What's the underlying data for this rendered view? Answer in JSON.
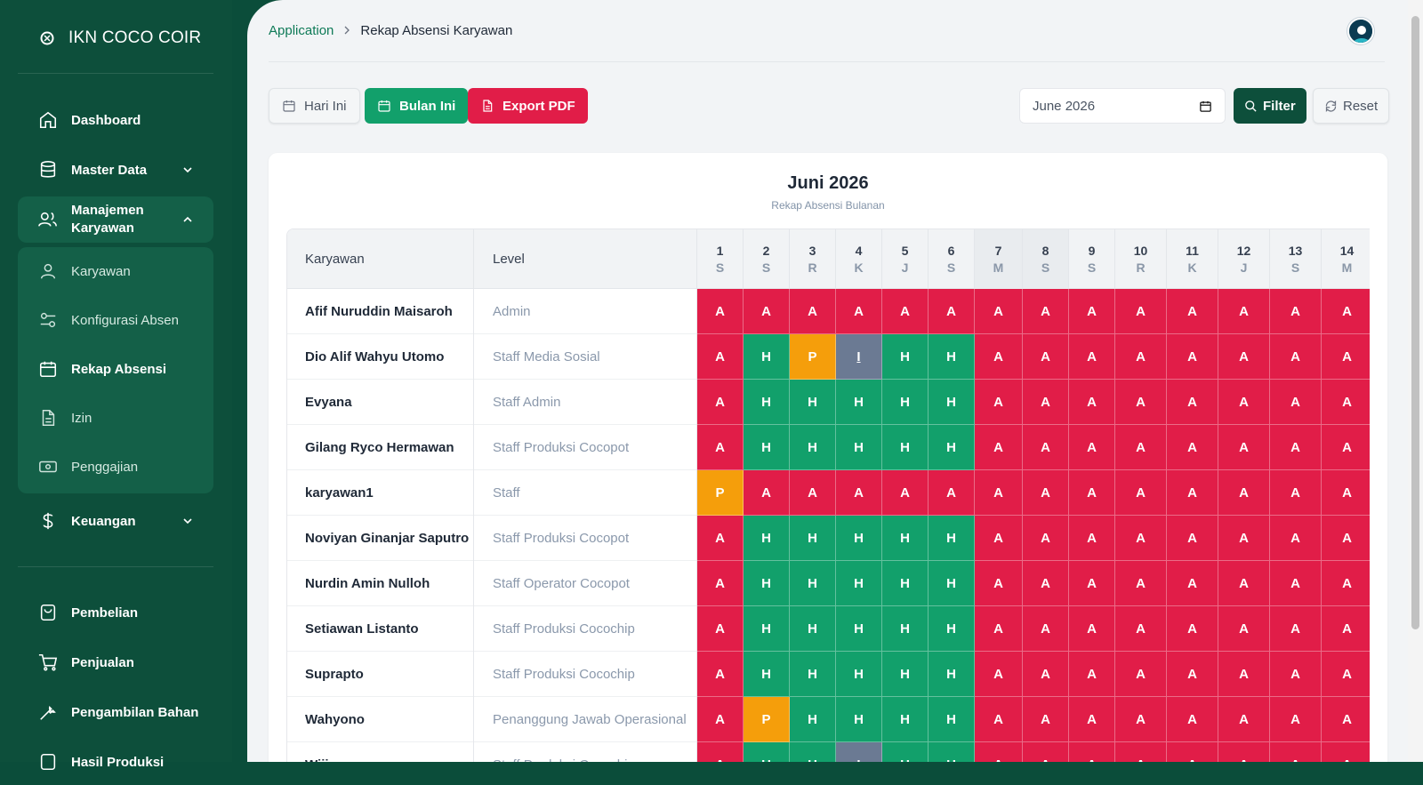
{
  "brand": {
    "name": "IKN COCO COIR"
  },
  "sidebar": {
    "items": [
      {
        "label": "Dashboard",
        "icon": "home-icon"
      },
      {
        "label": "Master Data",
        "icon": "database-icon"
      },
      {
        "label": "Manajemen Karyawan",
        "icon": "users-icon"
      },
      {
        "label": "Keuangan",
        "icon": "dollar-icon"
      },
      {
        "label": "Pembelian",
        "icon": "shopping-bag-icon"
      },
      {
        "label": "Penjualan",
        "icon": "cart-icon"
      },
      {
        "label": "Pengambilan Bahan",
        "icon": "wrench-icon"
      },
      {
        "label": "Hasil Produksi",
        "icon": "box-icon"
      }
    ],
    "submenu": [
      {
        "label": "Karyawan",
        "icon": "user-icon"
      },
      {
        "label": "Konfigurasi Absen",
        "icon": "sliders-icon"
      },
      {
        "label": "Rekap Absensi",
        "icon": "calendar-icon"
      },
      {
        "label": "Izin",
        "icon": "file-icon"
      },
      {
        "label": "Penggajian",
        "icon": "banknote-icon"
      }
    ]
  },
  "breadcrumb": {
    "root": "Application",
    "current": "Rekap Absensi Karyawan"
  },
  "toolbar": {
    "today_label": "Hari Ini",
    "month_label": "Bulan Ini",
    "export_label": "Export PDF",
    "month_value": "June 2026",
    "filter_label": "Filter",
    "reset_label": "Reset"
  },
  "report": {
    "title": "Juni 2026",
    "subtitle": "Rekap Absensi Bulanan",
    "col_employee": "Karyawan",
    "col_level": "Level",
    "days": [
      {
        "n": "1",
        "w": "S"
      },
      {
        "n": "2",
        "w": "S"
      },
      {
        "n": "3",
        "w": "R"
      },
      {
        "n": "4",
        "w": "K"
      },
      {
        "n": "5",
        "w": "J"
      },
      {
        "n": "6",
        "w": "S"
      },
      {
        "n": "7",
        "w": "M"
      },
      {
        "n": "8",
        "w": "S"
      },
      {
        "n": "9",
        "w": "S"
      },
      {
        "n": "10",
        "w": "R"
      },
      {
        "n": "11",
        "w": "K"
      },
      {
        "n": "12",
        "w": "J"
      },
      {
        "n": "13",
        "w": "S"
      },
      {
        "n": "14",
        "w": "M"
      }
    ],
    "rows": [
      {
        "name": "Afif Nuruddin Maisaroh",
        "level": "Admin",
        "att": [
          "A",
          "A",
          "A",
          "A",
          "A",
          "A",
          "A",
          "A",
          "A",
          "A",
          "A",
          "A",
          "A",
          "A"
        ]
      },
      {
        "name": "Dio Alif Wahyu Utomo",
        "level": "Staff Media Sosial",
        "att": [
          "A",
          "H",
          "P",
          "I",
          "H",
          "H",
          "A",
          "A",
          "A",
          "A",
          "A",
          "A",
          "A",
          "A"
        ]
      },
      {
        "name": "Evyana",
        "level": "Staff Admin",
        "att": [
          "A",
          "H",
          "H",
          "H",
          "H",
          "H",
          "A",
          "A",
          "A",
          "A",
          "A",
          "A",
          "A",
          "A"
        ]
      },
      {
        "name": "Gilang Ryco Hermawan",
        "level": "Staff Produksi Cocopot",
        "att": [
          "A",
          "H",
          "H",
          "H",
          "H",
          "H",
          "A",
          "A",
          "A",
          "A",
          "A",
          "A",
          "A",
          "A"
        ]
      },
      {
        "name": "karyawan1",
        "level": "Staff",
        "att": [
          "P",
          "A",
          "A",
          "A",
          "A",
          "A",
          "A",
          "A",
          "A",
          "A",
          "A",
          "A",
          "A",
          "A"
        ]
      },
      {
        "name": "Noviyan Ginanjar Saputro",
        "level": "Staff Produksi Cocopot",
        "att": [
          "A",
          "H",
          "H",
          "H",
          "H",
          "H",
          "A",
          "A",
          "A",
          "A",
          "A",
          "A",
          "A",
          "A"
        ]
      },
      {
        "name": "Nurdin Amin Nulloh",
        "level": "Staff Operator Cocopot",
        "att": [
          "A",
          "H",
          "H",
          "H",
          "H",
          "H",
          "A",
          "A",
          "A",
          "A",
          "A",
          "A",
          "A",
          "A"
        ]
      },
      {
        "name": "Setiawan Listanto",
        "level": "Staff Produksi Cocochip",
        "att": [
          "A",
          "H",
          "H",
          "H",
          "H",
          "H",
          "A",
          "A",
          "A",
          "A",
          "A",
          "A",
          "A",
          "A"
        ]
      },
      {
        "name": "Suprapto",
        "level": "Staff Produksi Cocochip",
        "att": [
          "A",
          "H",
          "H",
          "H",
          "H",
          "H",
          "A",
          "A",
          "A",
          "A",
          "A",
          "A",
          "A",
          "A"
        ]
      },
      {
        "name": "Wahyono",
        "level": "Penanggung Jawab Operasional",
        "att": [
          "A",
          "P",
          "H",
          "H",
          "H",
          "H",
          "A",
          "A",
          "A",
          "A",
          "A",
          "A",
          "A",
          "A"
        ]
      },
      {
        "name": "Wijiyono",
        "level": "Staff Produksi Cocochip",
        "att": [
          "A",
          "H",
          "H",
          "I",
          "H",
          "H",
          "A",
          "A",
          "A",
          "A",
          "A",
          "A",
          "A",
          "A"
        ]
      }
    ]
  },
  "colors": {
    "sidebar": "#0d4f3b",
    "absent": "#e11d48",
    "present": "#12a06b",
    "permit": "#f59e0b",
    "leave": "#6b7a93"
  }
}
